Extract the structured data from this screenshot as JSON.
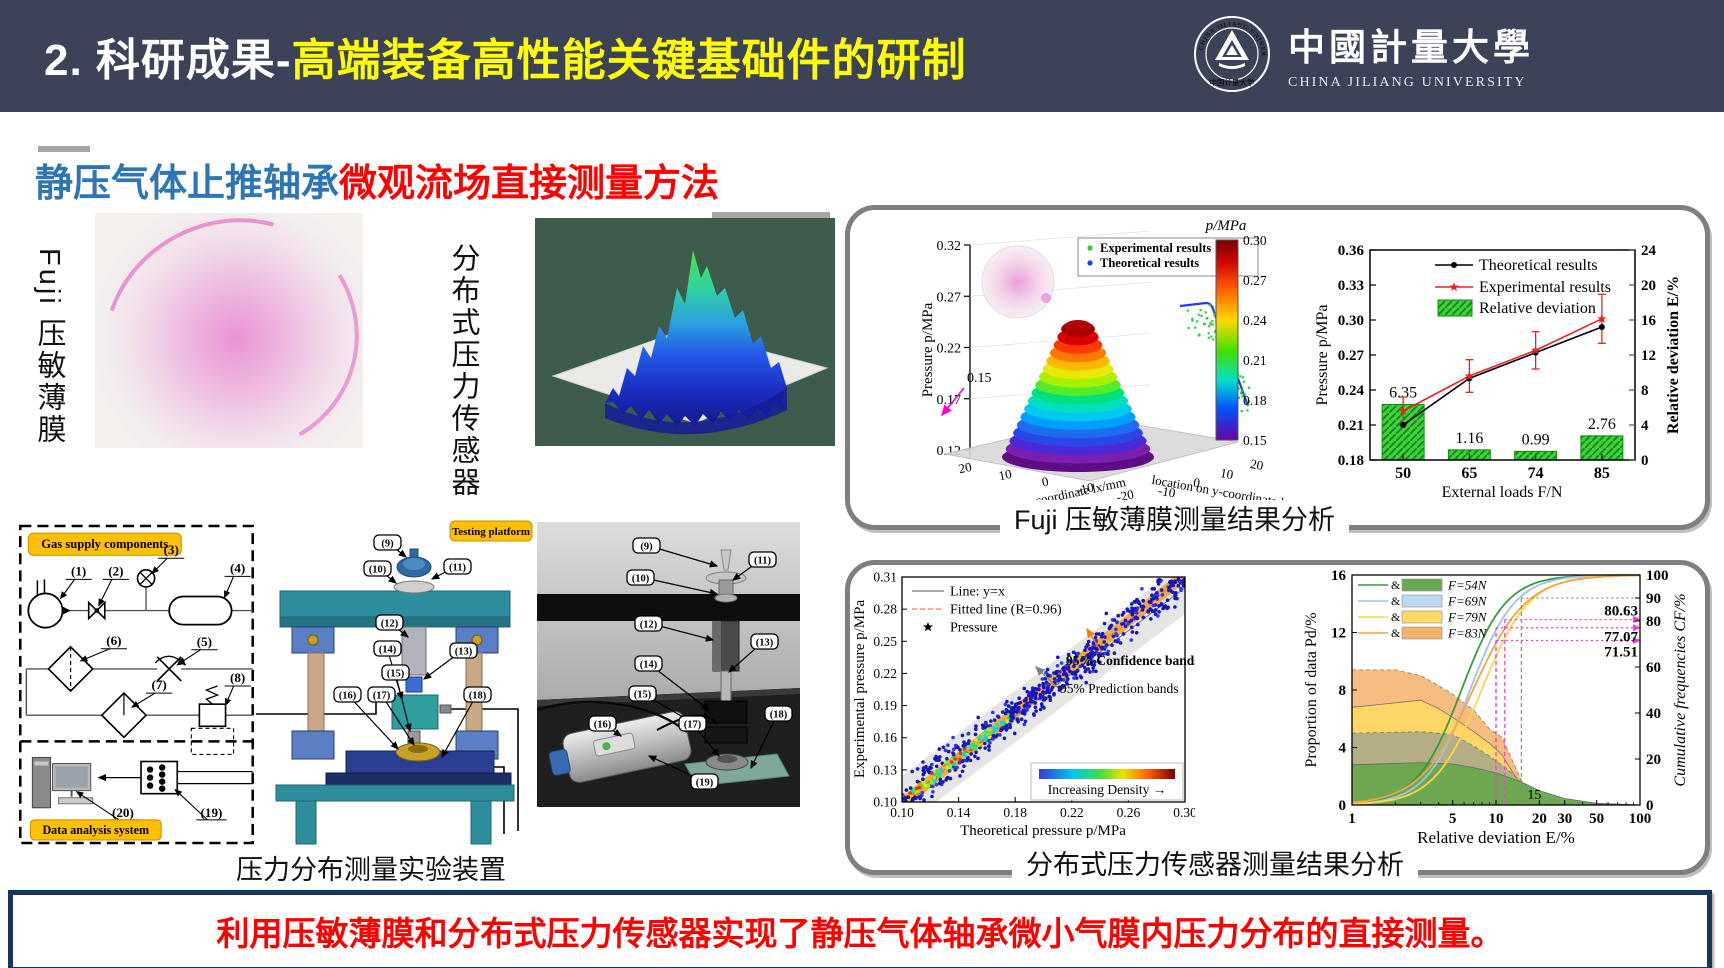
{
  "header": {
    "title_prefix": "2.  科研成果-",
    "title_highlight": "高端装备高性能关键基础件的研制",
    "logo": {
      "seal_top_text": "CHINA JILIANG UNIVERSITY",
      "seal_bottom_text": "中国计量大学",
      "name_cn": "中國計量大學",
      "name_en": "CHINA JILIANG UNIVERSITY"
    }
  },
  "subtitle": {
    "blue_part": "静压气体止推轴承",
    "red_part": "微观流场直接测量方法"
  },
  "left_figures": {
    "fuji_film_label": "Fuji 压敏薄膜",
    "sensor_label": "分布式压力传感器"
  },
  "setup": {
    "gas_box_label": "Gas supply components",
    "data_box_label": "Data analysis system",
    "platform_label": "Testing platform",
    "caption": "压力分布测量实验装置",
    "gas_callouts": [
      "(1)",
      "(2)",
      "(3)",
      "(4)",
      "(5)",
      "(6)",
      "(7)",
      "(8)"
    ],
    "data_callouts": [
      "(20)",
      "(19)"
    ],
    "platform_callouts": [
      "(9)",
      "(10)",
      "(11)",
      "(12)",
      "(13)",
      "(14)",
      "(15)",
      "(16)",
      "(17)",
      "(18)"
    ],
    "photo_callouts": [
      "(9)",
      "(10)",
      "(11)",
      "(12)",
      "(13)",
      "(14)",
      "(15)",
      "(16)",
      "(17)",
      "(18)",
      "(19)"
    ]
  },
  "panels": {
    "fuji_caption": "Fuji 压敏薄膜测量结果分析",
    "sensor_caption": "分布式压力传感器测量结果分析"
  },
  "banner": {
    "text": "利用压敏薄膜和分布式压力传感器实现了静压气体轴承微小气膜内压力分布的直接测量。"
  },
  "colors": {
    "header_bg": "#3c4257",
    "title_highlight": "#ffff00",
    "subtitle_blue": "#2e75b6",
    "subtitle_red": "#ff0000",
    "banner_border": "#17365d",
    "banner_text": "#ff0000",
    "diagram_label_bg": "#ffc000",
    "panel_border": "#7f7f7f"
  },
  "chart_data": [
    {
      "id": "fuji_3d_surface",
      "type": "surface3d",
      "zlabel": "Pressure p/MPa",
      "z_ticks": [
        0.12,
        0.17,
        0.22,
        0.27,
        0.32
      ],
      "xlabel": "location on x-coordinate lx/mm",
      "x_ticks": [
        20,
        10,
        0,
        -10,
        -20
      ],
      "ylabel": "location on y-coordinate ly/mm",
      "y_ticks": [
        -10,
        0,
        10,
        20
      ],
      "annotation": "0.15",
      "legend": [
        {
          "label": "Experimental results",
          "color": "#2ecc40"
        },
        {
          "label": "Theoretical results",
          "color": "#1f3fe8"
        }
      ],
      "colorbar": {
        "label": "p/MPa",
        "ticks": [
          0.3,
          0.27,
          0.24,
          0.21,
          0.18,
          0.15
        ]
      }
    },
    {
      "id": "fuji_load_comparison",
      "type": "bar+line",
      "categories": [
        50,
        65,
        74,
        85
      ],
      "xlabel": "External loads F/N",
      "ylabel_left": "Pressure p/MPa",
      "ylim_left": [
        0.18,
        0.36
      ],
      "yticks_left": [
        "0.18",
        "0.21",
        "0.24",
        "0.27",
        "0.30",
        "0.33",
        "0.36"
      ],
      "ylabel_right": "Relative deviation E/%",
      "ylim_right": [
        0,
        24
      ],
      "yticks_right": [
        0,
        4,
        8,
        12,
        16,
        20,
        24
      ],
      "series": [
        {
          "name": "Theoretical results",
          "type": "line",
          "color": "#000000",
          "marker": "circle",
          "values": [
            0.21,
            0.25,
            0.272,
            0.294
          ]
        },
        {
          "name": "Experimental results",
          "type": "line",
          "color": "#ee2222",
          "marker": "star",
          "values": [
            0.222,
            0.252,
            0.274,
            0.301
          ],
          "error": [
            0.012,
            0.014,
            0.016,
            0.021
          ]
        },
        {
          "name": "Relative deviation",
          "type": "bar",
          "axis": "right",
          "color": "#3fd23f",
          "values": [
            6.35,
            1.16,
            0.99,
            2.76
          ]
        }
      ],
      "bar_labels": [
        "6.35",
        "1.16",
        "0.99",
        "2.76"
      ]
    },
    {
      "id": "sensor_scatter",
      "type": "scatter",
      "xlabel": "Theoretical pressure p/MPa",
      "xlim": [
        0.1,
        0.3
      ],
      "x_ticks": [
        "0.10",
        "0.14",
        "0.18",
        "0.22",
        "0.26",
        "0.30"
      ],
      "ylabel": "Experimental pressure p/MPa",
      "ylim": [
        0.1,
        0.31
      ],
      "y_ticks": [
        "0.10",
        "0.13",
        "0.16",
        "0.19",
        "0.22",
        "0.25",
        "0.28",
        "0.31"
      ],
      "legend": [
        {
          "label": "Line: y=x",
          "color": "#8c8c8c"
        },
        {
          "label": "Fitted line (R=0.96)",
          "color": "#ff8a8a"
        },
        {
          "label": "Pressure",
          "marker": "star",
          "color": "#000000"
        }
      ],
      "fit_r": 0.96,
      "annotations": [
        "95% Confidence bands",
        "95% Prediction bands"
      ],
      "colorbar_label": "Increasing Density →"
    },
    {
      "id": "sensor_cumulative",
      "type": "area+line",
      "xlabel": "Relative deviation E/%",
      "x_scale": "log",
      "x_ticks": [
        1,
        5,
        10,
        20,
        30,
        50,
        100
      ],
      "ylabel_left": "Proportion of data Pd/%",
      "yticks_left": [
        0,
        4,
        8,
        12,
        16
      ],
      "ylabel_right": "Cumulative frequencies CF/%",
      "yticks_right": [
        0,
        20,
        40,
        60,
        80,
        90,
        100
      ],
      "series": [
        {
          "name": "F=54N",
          "line_color": "#3a9a3f",
          "fill_color": "#6aa84f"
        },
        {
          "name": "F=69N",
          "line_color": "#9dc3e6",
          "fill_color": "#bcd9f0"
        },
        {
          "name": "F=79N",
          "line_color": "#ffd24d",
          "fill_color": "#ffd966"
        },
        {
          "name": "F=83N",
          "line_color": "#f4a442",
          "fill_color": "#f6b26b"
        }
      ],
      "legend_joiner": "&",
      "annotations": [
        "80.63",
        "77.07",
        "71.51",
        "15"
      ]
    }
  ]
}
